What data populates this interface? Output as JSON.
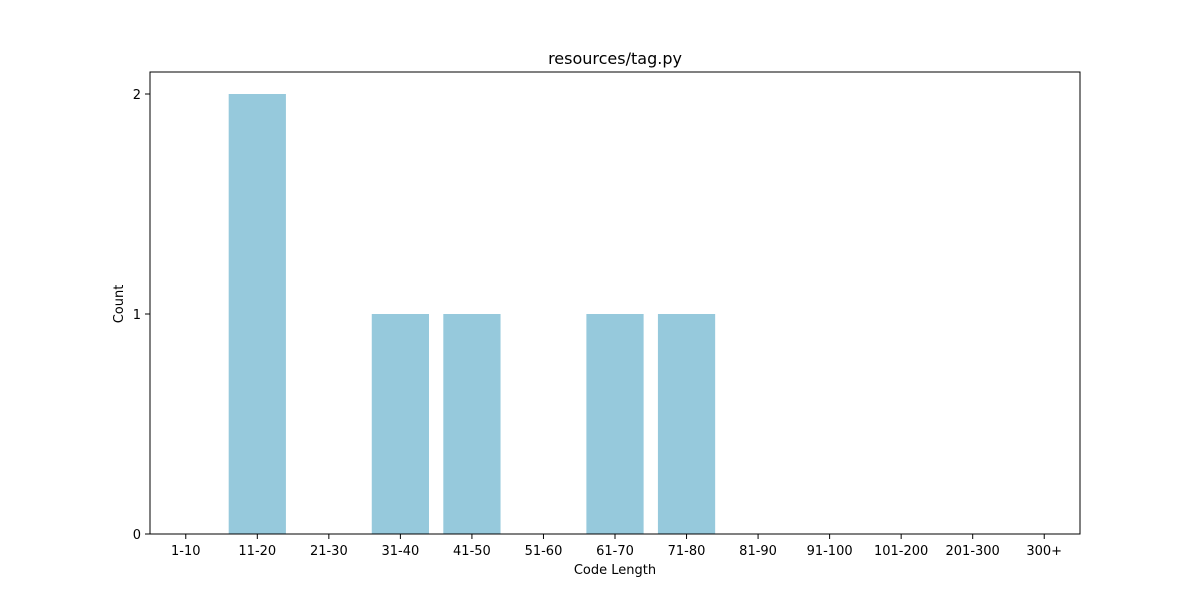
{
  "chart_data": {
    "type": "bar",
    "title": "resources/tag.py",
    "xlabel": "Code Length",
    "ylabel": "Count",
    "categories": [
      "1-10",
      "11-20",
      "21-30",
      "31-40",
      "41-50",
      "51-60",
      "61-70",
      "71-80",
      "81-90",
      "91-100",
      "101-200",
      "201-300",
      "300+"
    ],
    "values": [
      0,
      2,
      0,
      1,
      1,
      0,
      1,
      1,
      0,
      0,
      0,
      0,
      0
    ],
    "ylim": [
      0,
      2.1
    ],
    "yticks": [
      0,
      1,
      2
    ],
    "grid": false,
    "bar_color": "#96c9dc"
  }
}
